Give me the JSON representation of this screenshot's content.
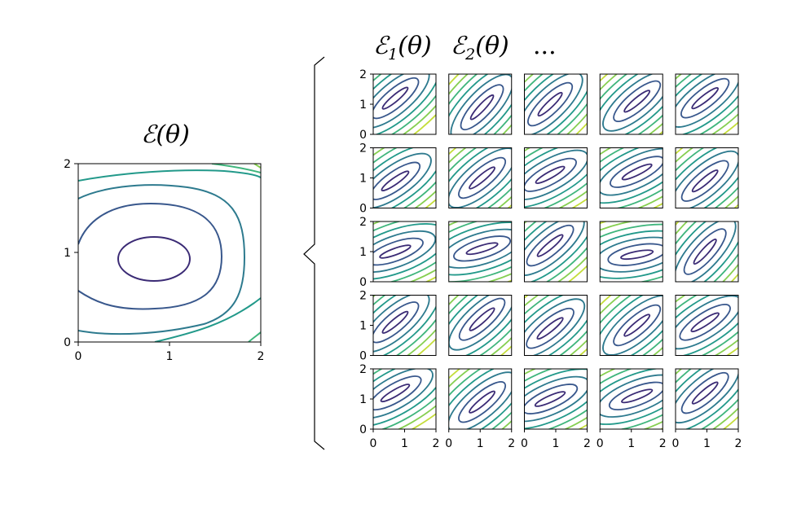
{
  "main_panel": {
    "title": "ℰ(θ)",
    "xticks": [
      "0",
      "1",
      "2"
    ],
    "yticks": [
      "0",
      "1",
      "2"
    ]
  },
  "grid_panel": {
    "headers": [
      {
        "script": "ℰ",
        "sub": "1",
        "arg": "(θ)"
      },
      {
        "script": "ℰ",
        "sub": "2",
        "arg": "(θ)"
      },
      {
        "ellipsis": "..."
      }
    ],
    "rows": 5,
    "cols": 5,
    "xticks": [
      "0",
      "1",
      "2"
    ],
    "yticks": [
      "0",
      "1",
      "2"
    ]
  },
  "colors": {
    "contour_palette": [
      "#3b2b75",
      "#38578c",
      "#2d7a8e",
      "#22998a",
      "#3fb57c",
      "#86cf51",
      "#c4dd3a"
    ]
  }
}
